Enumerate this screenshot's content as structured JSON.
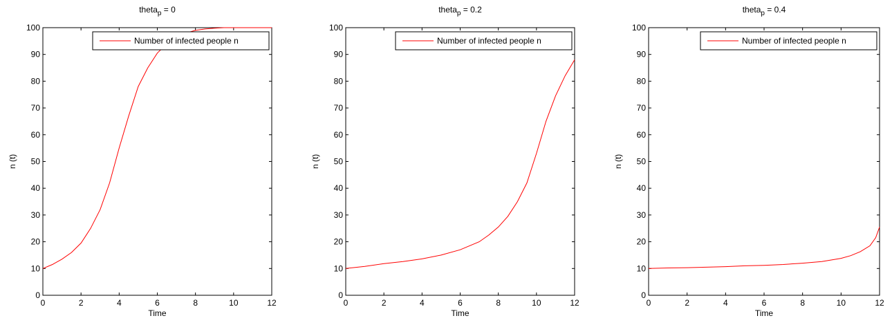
{
  "chart_data": [
    {
      "type": "line",
      "title": "theta",
      "title_subscript": "p",
      "title_suffix": " = 0",
      "xlabel": "Time",
      "ylabel": "n (t)",
      "xlim": [
        0,
        12
      ],
      "ylim": [
        0,
        100
      ],
      "xticks": [
        0,
        2,
        4,
        6,
        8,
        10,
        12
      ],
      "yticks": [
        0,
        10,
        20,
        30,
        40,
        50,
        60,
        70,
        80,
        90,
        100
      ],
      "legend_position": "top-right",
      "grid": false,
      "series": [
        {
          "name": "Number of infected people n",
          "color": "#ff0000",
          "x": [
            0,
            0.5,
            1,
            1.5,
            2,
            2.5,
            3,
            3.5,
            4,
            4.5,
            5,
            5.5,
            6,
            6.5,
            7,
            7.5,
            8,
            8.5,
            9,
            9.5,
            10,
            11,
            12
          ],
          "y": [
            10,
            11.5,
            13.5,
            16,
            19.5,
            25,
            32,
            42,
            55,
            67,
            78,
            85,
            90.5,
            94,
            96.5,
            98,
            99,
            99.5,
            99.8,
            100,
            100,
            100,
            100
          ]
        }
      ]
    },
    {
      "type": "line",
      "title": "theta",
      "title_subscript": "p",
      "title_suffix": " = 0.2",
      "xlabel": "Time",
      "ylabel": "n (t)",
      "xlim": [
        0,
        12
      ],
      "ylim": [
        0,
        100
      ],
      "xticks": [
        0,
        2,
        4,
        6,
        8,
        10,
        12
      ],
      "yticks": [
        0,
        10,
        20,
        30,
        40,
        50,
        60,
        70,
        80,
        90,
        100
      ],
      "legend_position": "top-right",
      "grid": false,
      "series": [
        {
          "name": "Number of infected people n",
          "color": "#ff0000",
          "x": [
            0,
            1,
            2,
            3,
            4,
            5,
            6,
            7,
            7.5,
            8,
            8.5,
            9,
            9.5,
            10,
            10.5,
            11,
            11.5,
            12
          ],
          "y": [
            10,
            10.8,
            11.8,
            12.6,
            13.6,
            15,
            17,
            20,
            22.5,
            25.5,
            29.5,
            35,
            42,
            53,
            65,
            74.5,
            82,
            88
          ]
        }
      ]
    },
    {
      "type": "line",
      "title": "theta",
      "title_subscript": "p",
      "title_suffix": " = 0.4",
      "xlabel": "Time",
      "ylabel": "n (t)",
      "xlim": [
        0,
        12
      ],
      "ylim": [
        0,
        100
      ],
      "xticks": [
        0,
        2,
        4,
        6,
        8,
        10,
        12
      ],
      "yticks": [
        0,
        10,
        20,
        30,
        40,
        50,
        60,
        70,
        80,
        90,
        100
      ],
      "legend_position": "top-right",
      "grid": false,
      "series": [
        {
          "name": "Number of infected people n",
          "color": "#ff0000",
          "x": [
            0,
            1,
            2,
            3,
            4,
            5,
            6,
            7,
            8,
            9,
            10,
            10.5,
            11,
            11.5,
            11.8,
            12
          ],
          "y": [
            10,
            10.2,
            10.3,
            10.5,
            10.7,
            11,
            11.2,
            11.5,
            12,
            12.6,
            13.8,
            14.8,
            16.3,
            18.5,
            21.5,
            25.5
          ]
        }
      ]
    }
  ]
}
